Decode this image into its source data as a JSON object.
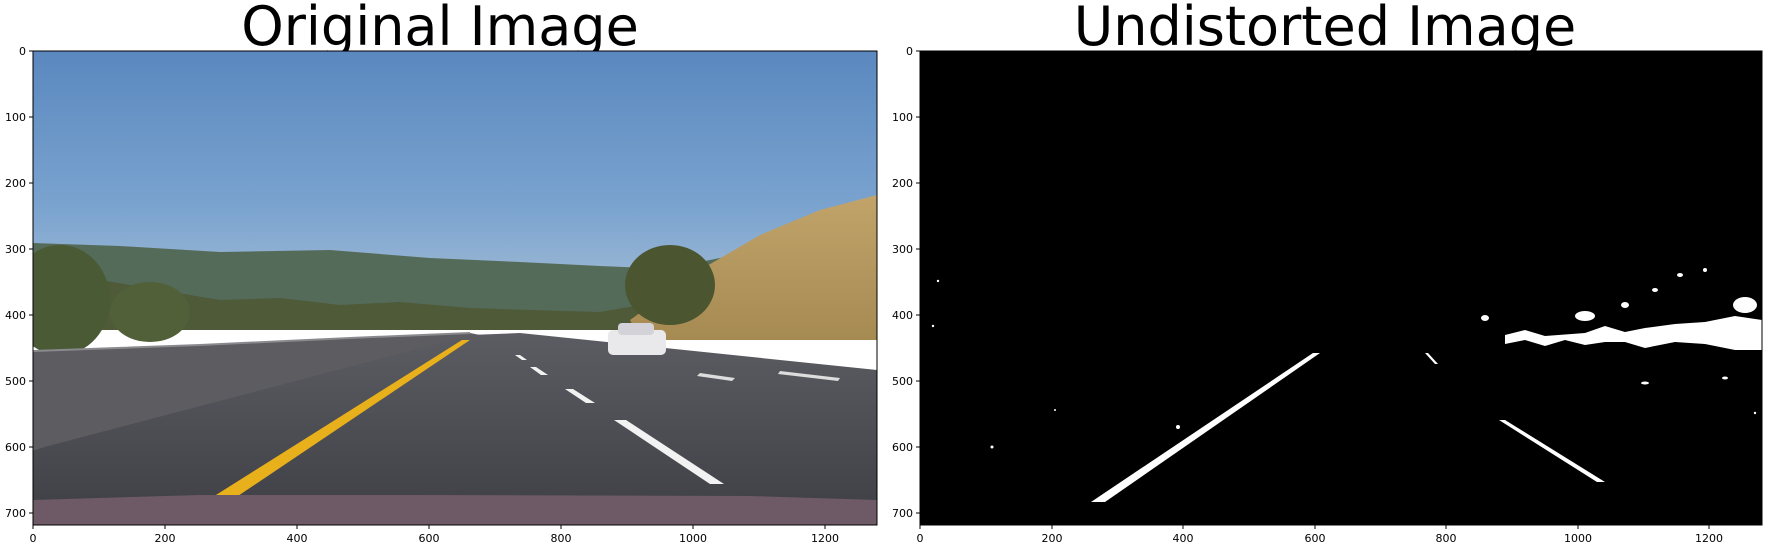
{
  "panels": [
    {
      "id": "original",
      "title": "Original Image",
      "image_kind": "road-photo",
      "x_ticks": [
        "0",
        "200",
        "400",
        "600",
        "800",
        "1000",
        "1200"
      ],
      "y_ticks": [
        "0",
        "100",
        "200",
        "300",
        "400",
        "500",
        "600",
        "700"
      ],
      "x_range": [
        0,
        1280
      ],
      "y_range": [
        0,
        720
      ]
    },
    {
      "id": "undistorted",
      "title": "Undistorted Image",
      "image_kind": "binary-threshold",
      "x_ticks": [
        "0",
        "200",
        "400",
        "600",
        "800",
        "1000",
        "1200"
      ],
      "y_ticks": [
        "0",
        "100",
        "200",
        "300",
        "400",
        "500",
        "600",
        "700"
      ],
      "x_range": [
        0,
        1280
      ],
      "y_range": [
        0,
        720
      ]
    }
  ],
  "colors": {
    "sky": "#6f9bc9",
    "asphalt": "#4a4a52",
    "lane_yellow": "#e8b01a",
    "lane_white": "#f2f2f2",
    "binary_bg": "#000000",
    "binary_fg": "#ffffff"
  }
}
